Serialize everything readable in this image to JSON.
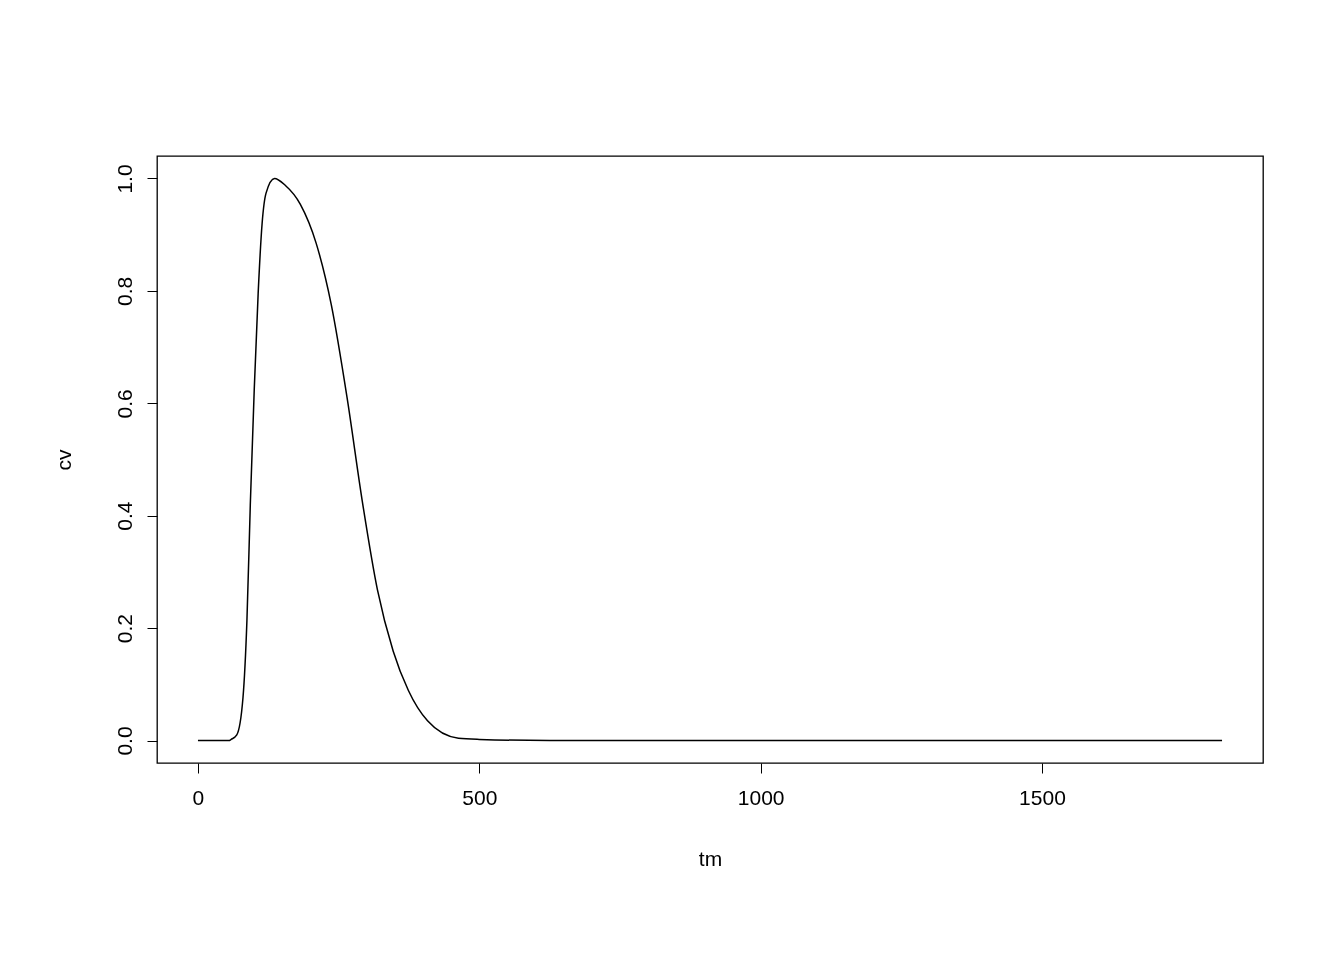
{
  "chart_data": {
    "type": "line",
    "xlabel": "tm",
    "ylabel": "cv",
    "x": [
      0,
      30,
      55,
      59,
      69,
      80,
      87,
      93,
      100,
      107,
      114,
      121,
      136,
      155,
      182,
      210,
      237,
      265,
      292,
      319,
      347,
      374,
      408,
      463,
      500,
      625,
      1000,
      1500,
      1820
    ],
    "series": [
      {
        "color": "#000000",
        "values": [
          0,
          0,
          0,
          0.002,
          0.01,
          0.076,
          0.213,
          0.419,
          0.624,
          0.796,
          0.92,
          0.974,
          1.0,
          0.988,
          0.954,
          0.885,
          0.775,
          0.61,
          0.426,
          0.268,
          0.159,
          0.089,
          0.035,
          0.004,
          0.002,
          0,
          0,
          0,
          0
        ]
      }
    ],
    "xlim": [
      -72.8,
      1892.8
    ],
    "xticks": [
      0,
      500,
      1000,
      1500
    ],
    "ylim": [
      -0.04,
      1.04
    ],
    "yticks": [
      {
        "value": 0,
        "label": "0.0"
      },
      {
        "value": 0.2,
        "label": "0.2"
      },
      {
        "value": 0.4,
        "label": "0.4"
      },
      {
        "value": 0.6,
        "label": "0.6"
      },
      {
        "value": 0.8,
        "label": "0.8"
      },
      {
        "value": 1,
        "label": "1.0"
      }
    ],
    "grid": false,
    "line_style": "solid"
  }
}
